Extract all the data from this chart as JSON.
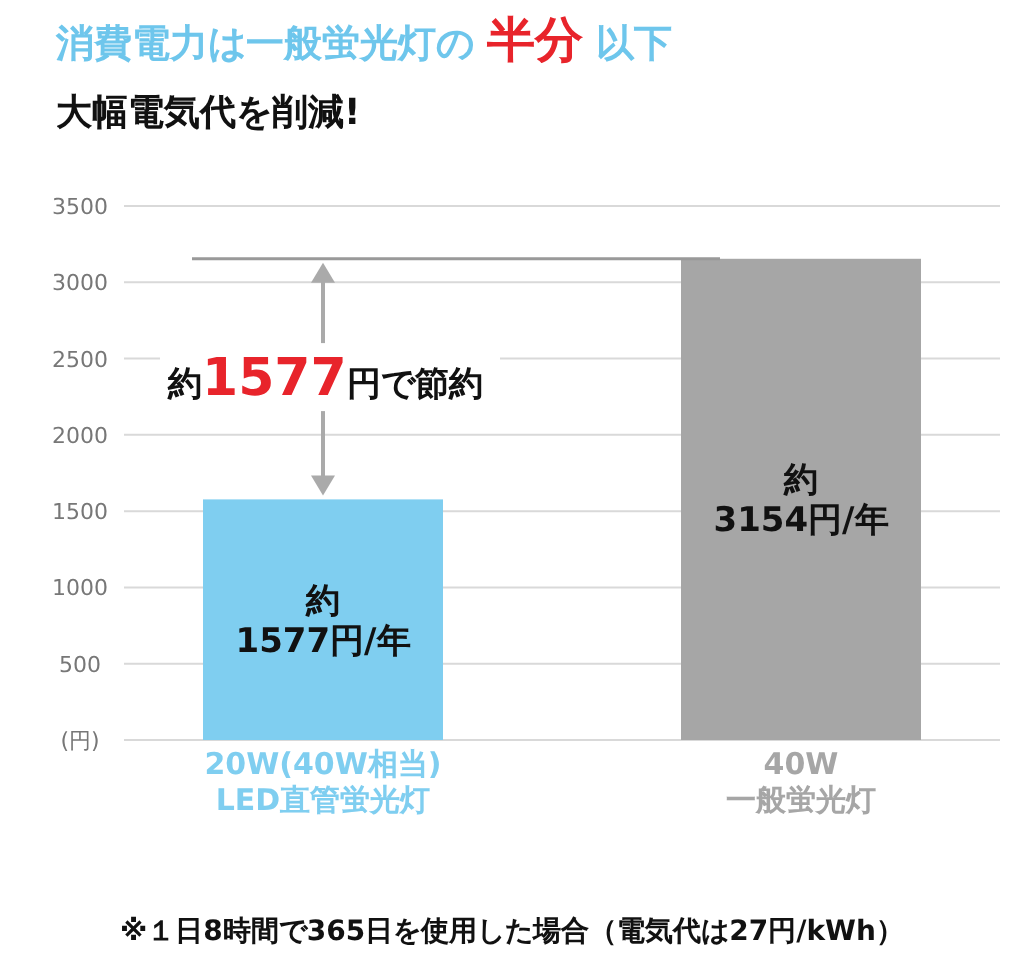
{
  "chart_data": {
    "type": "bar",
    "title": "消費電力は一般蛍光灯の **半分** 以下",
    "subtitle": "大幅電気代を削減!",
    "categories": [
      "20W(40W相当)\nLED直管蛍光灯",
      "40W\n一般蛍光灯"
    ],
    "values": [
      1577,
      3154
    ],
    "colors": [
      "#7fcef0",
      "#a6a6a6"
    ],
    "value_labels": [
      "約\n1577円/年",
      "約\n3154円/年"
    ],
    "ylim": [
      0,
      3500
    ],
    "yticks": [
      {
        "value": 0,
        "label": "(円)"
      },
      500,
      1000,
      1500,
      2000,
      2500,
      3000,
      3500
    ],
    "grid": "y",
    "ref_lines": [
      {
        "axis": "y",
        "value": 3154,
        "color": "#999999"
      }
    ],
    "annotations": [
      "約**1577**円で節約",
      "※１日8時間で365日を使用した場合（電気代は27円/kWh）"
    ]
  }
}
